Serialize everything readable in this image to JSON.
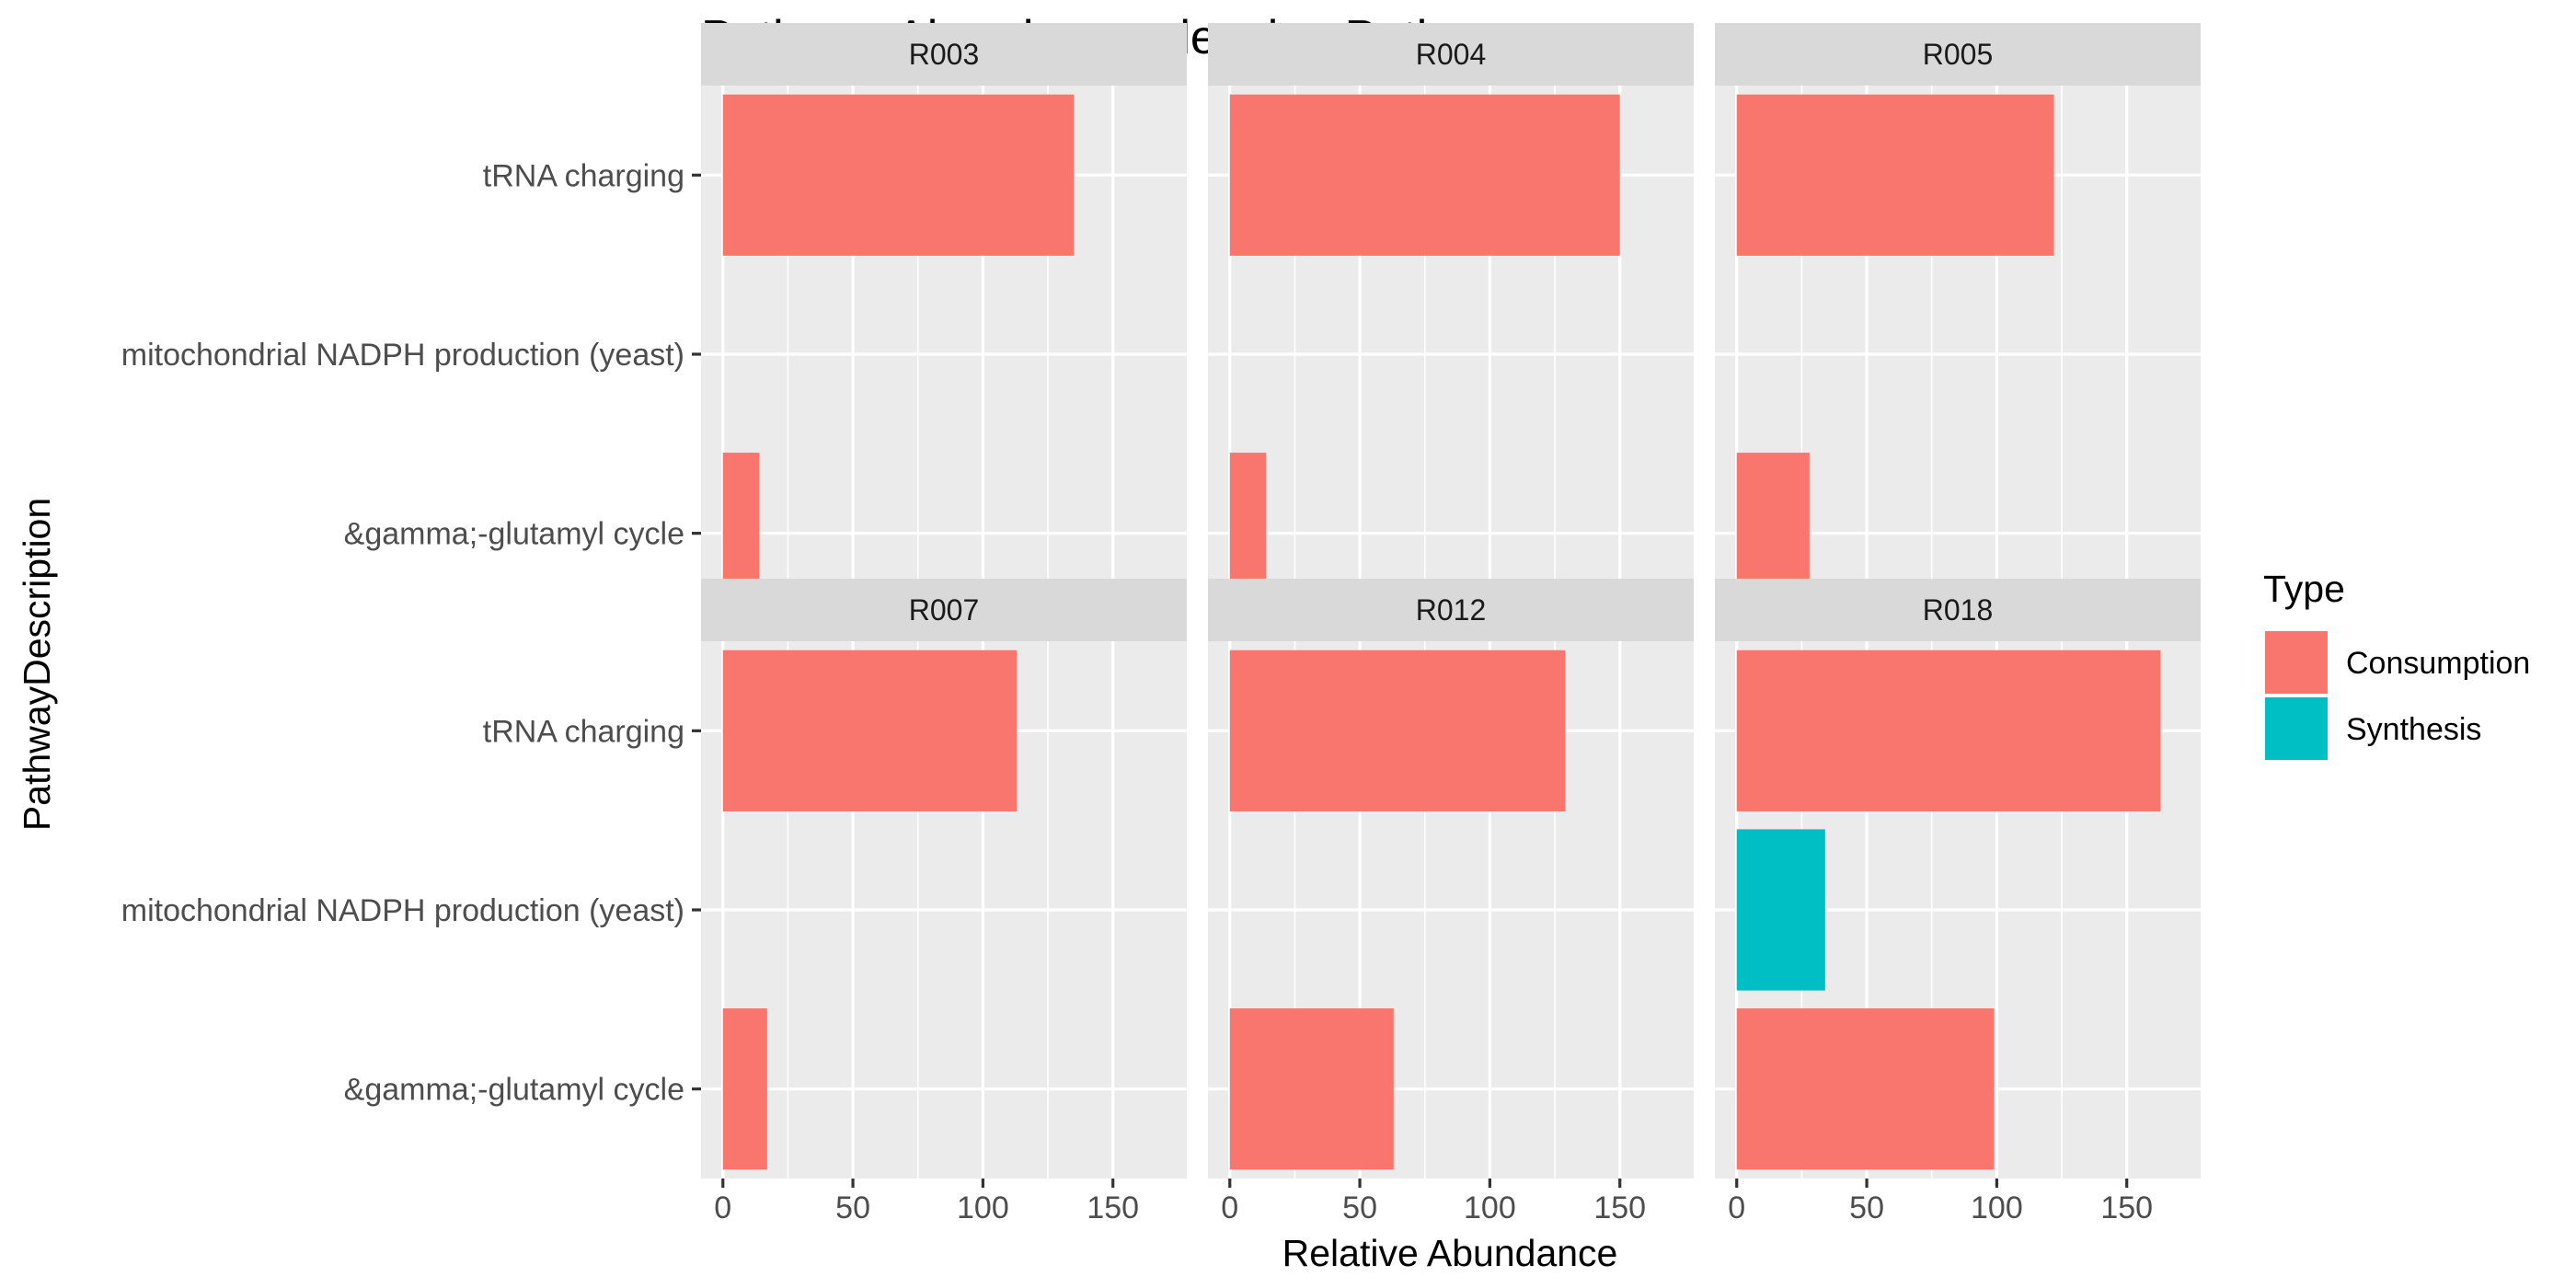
{
  "chart_data": {
    "type": "bar",
    "orientation": "horizontal",
    "title": "Pathway Abundance - leucine Pathways",
    "xlabel": "Relative Abundance",
    "ylabel": "PathwayDescription",
    "xlim": [
      0,
      170
    ],
    "xticks": [
      0,
      50,
      100,
      150
    ],
    "grid": true,
    "categories": [
      "tRNA charging",
      "mitochondrial NADPH production (yeast)",
      "&gamma;-glutamyl cycle"
    ],
    "legend": {
      "title": "Type",
      "position": "right",
      "entries": [
        {
          "name": "Consumption",
          "color": "#F8766D"
        },
        {
          "name": "Synthesis",
          "color": "#00BFC4"
        }
      ]
    },
    "facets": [
      {
        "label": "R003",
        "bars": [
          {
            "category": "tRNA charging",
            "type": "Consumption",
            "value": 135
          },
          {
            "category": "&gamma;-glutamyl cycle",
            "type": "Consumption",
            "value": 14
          }
        ]
      },
      {
        "label": "R004",
        "bars": [
          {
            "category": "tRNA charging",
            "type": "Consumption",
            "value": 150
          },
          {
            "category": "&gamma;-glutamyl cycle",
            "type": "Consumption",
            "value": 14
          }
        ]
      },
      {
        "label": "R005",
        "bars": [
          {
            "category": "tRNA charging",
            "type": "Consumption",
            "value": 122
          },
          {
            "category": "&gamma;-glutamyl cycle",
            "type": "Consumption",
            "value": 28
          }
        ]
      },
      {
        "label": "R007",
        "bars": [
          {
            "category": "tRNA charging",
            "type": "Consumption",
            "value": 113
          },
          {
            "category": "&gamma;-glutamyl cycle",
            "type": "Consumption",
            "value": 17
          }
        ]
      },
      {
        "label": "R012",
        "bars": [
          {
            "category": "tRNA charging",
            "type": "Consumption",
            "value": 129
          },
          {
            "category": "&gamma;-glutamyl cycle",
            "type": "Consumption",
            "value": 63
          }
        ]
      },
      {
        "label": "R018",
        "bars": [
          {
            "category": "tRNA charging",
            "type": "Consumption",
            "value": 163
          },
          {
            "category": "mitochondrial NADPH production (yeast)",
            "type": "Synthesis",
            "value": 34
          },
          {
            "category": "&gamma;-glutamyl cycle",
            "type": "Consumption",
            "value": 99
          }
        ]
      }
    ]
  }
}
